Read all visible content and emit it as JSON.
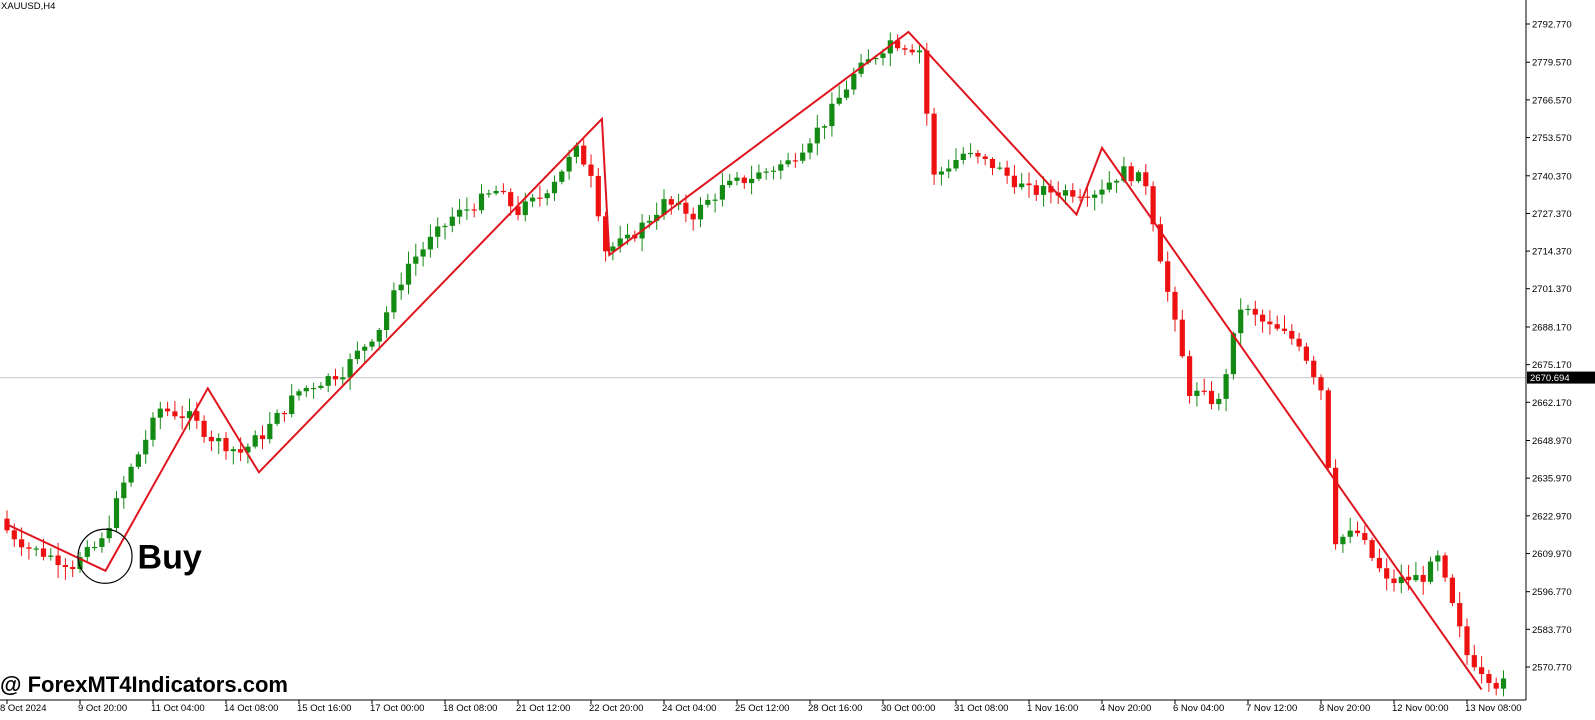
{
  "chart_data": {
    "type": "candlestick",
    "title": "XAUUSD,H4",
    "symbol": "XAUUSD",
    "timeframe": "H4",
    "ylim": [
      2562,
      2800
    ],
    "grid": false,
    "y_ticks": [
      2792.77,
      2779.57,
      2766.57,
      2753.57,
      2740.37,
      2727.37,
      2714.37,
      2701.37,
      2688.17,
      2675.17,
      2662.17,
      2648.97,
      2635.97,
      2622.97,
      2609.97,
      2596.77,
      2583.77,
      2570.77
    ],
    "y_tick_labels": [
      "2792.770",
      "2779.570",
      "2766.570",
      "2753.570",
      "2740.370",
      "2727.370",
      "2714.370",
      "2701.370",
      "2688.170",
      "2675.170",
      "2662.170",
      "2648.970",
      "2635.970",
      "2622.970",
      "2609.970",
      "2596.770",
      "2583.770",
      "2570.770"
    ],
    "current_price": 2670.694,
    "current_price_label": "2670.694",
    "x_tick_labels": [
      "8 Oct 2024",
      "9 Oct 20:00",
      "11 Oct 04:00",
      "14 Oct 08:00",
      "15 Oct 16:00",
      "17 Oct 00:00",
      "18 Oct 08:00",
      "21 Oct 12:00",
      "22 Oct 20:00",
      "24 Oct 04:00",
      "25 Oct 12:00",
      "28 Oct 16:00",
      "30 Oct 00:00",
      "31 Oct 08:00",
      "1 Nov 16:00",
      "4 Nov 20:00",
      "6 Nov 04:00",
      "7 Nov 12:00",
      "8 Nov 20:00",
      "12 Nov 00:00",
      "13 Nov 08:00"
    ],
    "x_tick_bar_index": [
      0,
      10,
      20,
      30,
      40,
      50,
      60,
      70,
      80,
      90,
      100,
      110,
      120,
      130,
      140,
      150,
      160,
      170,
      180,
      190,
      200
    ],
    "bar_count": 206,
    "candle_anchors": [
      [
        0,
        2620
      ],
      [
        4,
        2612
      ],
      [
        10,
        2606
      ],
      [
        14,
        2614
      ],
      [
        17,
        2634
      ],
      [
        22,
        2660
      ],
      [
        26,
        2657
      ],
      [
        29,
        2650
      ],
      [
        33,
        2645
      ],
      [
        36,
        2651
      ],
      [
        41,
        2666
      ],
      [
        47,
        2673
      ],
      [
        52,
        2688
      ],
      [
        56,
        2710
      ],
      [
        62,
        2726
      ],
      [
        68,
        2735
      ],
      [
        71,
        2728
      ],
      [
        74,
        2733
      ],
      [
        79,
        2749
      ],
      [
        81,
        2742
      ],
      [
        83,
        2715
      ],
      [
        86,
        2718
      ],
      [
        91,
        2731
      ],
      [
        95,
        2727
      ],
      [
        99,
        2736
      ],
      [
        103,
        2740
      ],
      [
        108,
        2745
      ],
      [
        113,
        2759
      ],
      [
        117,
        2775
      ],
      [
        122,
        2787
      ],
      [
        126,
        2784
      ],
      [
        128,
        2740
      ],
      [
        132,
        2748
      ],
      [
        136,
        2744
      ],
      [
        141,
        2735
      ],
      [
        146,
        2735
      ],
      [
        150,
        2735
      ],
      [
        154,
        2742
      ],
      [
        157,
        2738
      ],
      [
        160,
        2700
      ],
      [
        163,
        2666
      ],
      [
        167,
        2662
      ],
      [
        170,
        2695
      ],
      [
        174,
        2688
      ],
      [
        178,
        2683
      ],
      [
        181,
        2667
      ],
      [
        183,
        2615
      ],
      [
        186,
        2617
      ],
      [
        190,
        2600
      ],
      [
        195,
        2602
      ],
      [
        197,
        2608
      ],
      [
        201,
        2575
      ],
      [
        205,
        2565
      ]
    ],
    "zigzag": [
      {
        "x": 0,
        "y": 2620
      },
      {
        "x": 13.5,
        "y": 2604
      },
      {
        "x": 27.5,
        "y": 2667
      },
      {
        "x": 34.5,
        "y": 2638
      },
      {
        "x": 81.5,
        "y": 2760
      },
      {
        "x": 82.5,
        "y": 2713
      },
      {
        "x": 123.5,
        "y": 2790
      },
      {
        "x": 146.5,
        "y": 2727
      },
      {
        "x": 150,
        "y": 2750
      },
      {
        "x": 202,
        "y": 2563
      }
    ],
    "colors": {
      "bullish": "#138a13",
      "bearish": "#ee1111",
      "zigzag": "#e0141e",
      "axis": "#000000",
      "price_line": "#c8c8c8",
      "price_tag_bg": "#000000"
    },
    "annotation": {
      "label": "Buy",
      "anchor_bar": 13.5,
      "anchor_price": 2609
    }
  },
  "watermark": "@ ForexMT4Indicators.com"
}
